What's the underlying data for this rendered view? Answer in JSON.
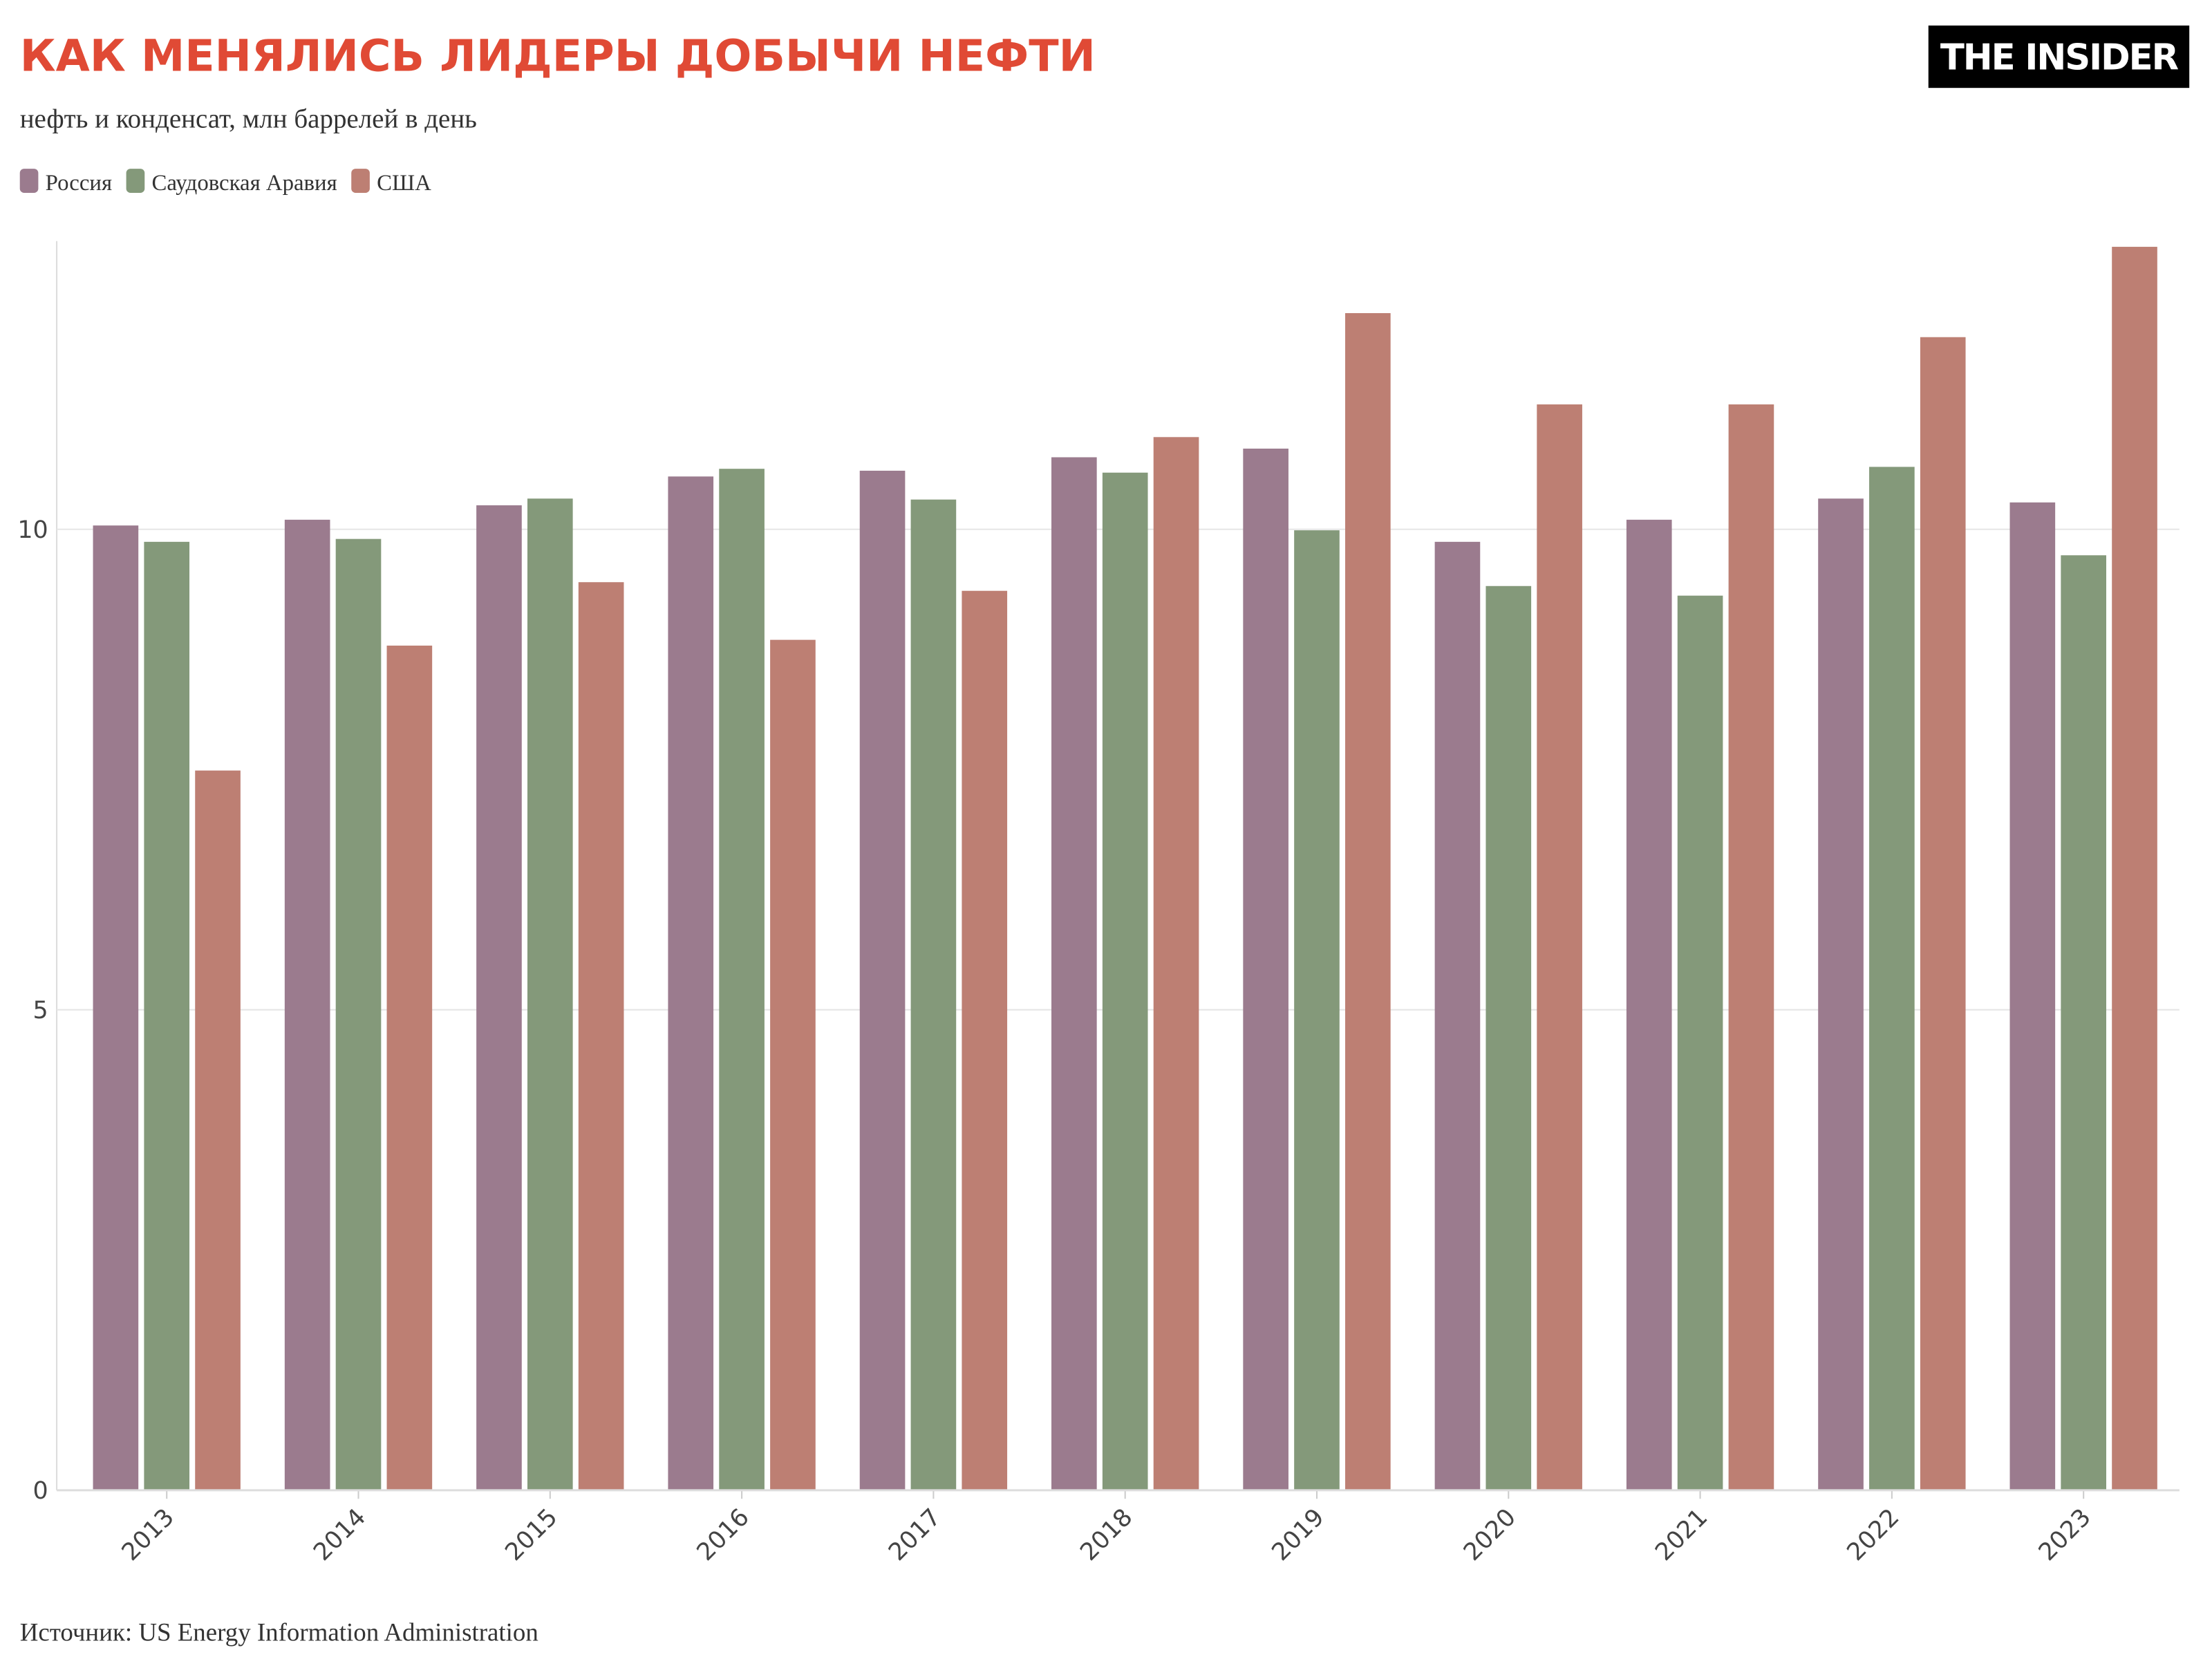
{
  "chart_data": {
    "type": "bar",
    "title": "КАК МЕНЯЛИСЬ ЛИДЕРЫ ДОБЫЧИ НЕФТИ",
    "subtitle": "нефть и конденсат, млн баррелей в день",
    "logo": "THE INSIDER",
    "source": "Источник: US Energy Information Administration",
    "categories": [
      "2013",
      "2014",
      "2015",
      "2016",
      "2017",
      "2018",
      "2019",
      "2020",
      "2021",
      "2022",
      "2023"
    ],
    "series": [
      {
        "name": "Россия",
        "color": "#9b7b8e",
        "values": [
          10.04,
          10.1,
          10.25,
          10.55,
          10.61,
          10.75,
          10.84,
          9.87,
          10.1,
          10.32,
          10.28
        ]
      },
      {
        "name": "Саудовская Аравия",
        "color": "#84997a",
        "values": [
          9.87,
          9.9,
          10.32,
          10.63,
          10.31,
          10.59,
          9.99,
          9.41,
          9.31,
          10.65,
          9.73
        ]
      },
      {
        "name": "США",
        "color": "#bd7f73",
        "values": [
          7.49,
          8.79,
          9.45,
          8.85,
          9.36,
          10.96,
          12.25,
          11.3,
          11.3,
          12.0,
          12.94
        ]
      }
    ],
    "ylim": [
      0,
      13
    ],
    "yticks": [
      0,
      5,
      10
    ],
    "grid": true
  }
}
